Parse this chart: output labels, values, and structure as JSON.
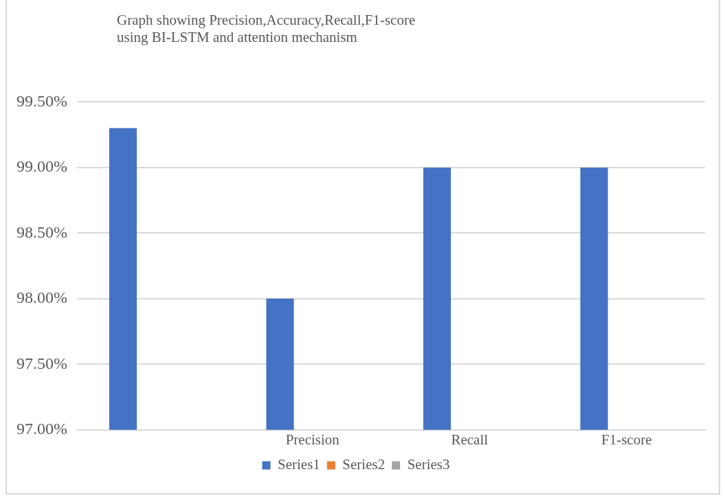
{
  "chart_data": {
    "type": "bar",
    "title": "Graph showing Precision,Accuracy,Recall,F1-score\nusing BI-LSTM and attention mechanism",
    "categories": [
      null,
      "Precision",
      "Recall",
      "F1-score"
    ],
    "series": [
      {
        "name": "Series1",
        "color": "#4472c4",
        "values": [
          99.3,
          98.0,
          99.0,
          99.0
        ]
      },
      {
        "name": "Series2",
        "color": "#ed7d31",
        "values": [
          null,
          null,
          null,
          null
        ]
      },
      {
        "name": "Series3",
        "color": "#a5a5a5",
        "values": [
          null,
          null,
          null,
          null
        ]
      }
    ],
    "ylim": [
      97,
      99.5
    ],
    "yticks": [
      {
        "value": 97,
        "label": "97.00%"
      },
      {
        "value": 97.5,
        "label": "97.50%"
      },
      {
        "value": 98,
        "label": "98.00%"
      },
      {
        "value": 98.5,
        "label": "98.50%"
      },
      {
        "value": 99,
        "label": "99.00%"
      },
      {
        "value": 99.5,
        "label": "99.50%"
      }
    ],
    "grid": "y",
    "legend": "bottom"
  }
}
